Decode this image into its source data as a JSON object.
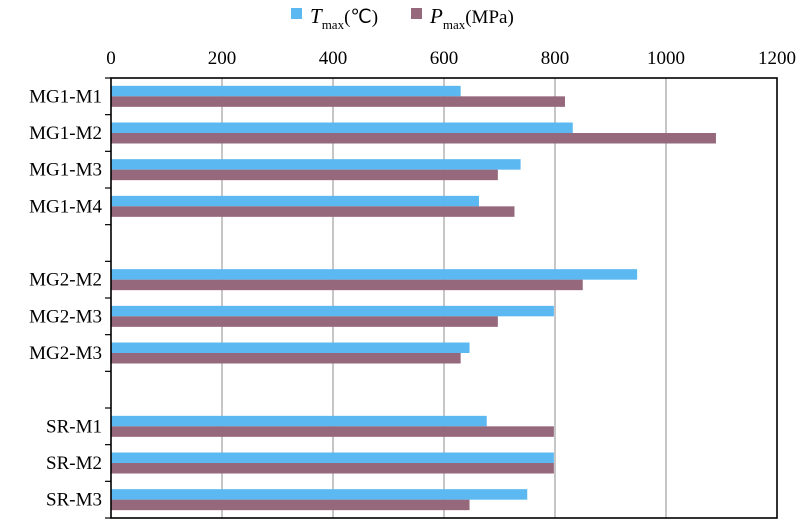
{
  "chart_data": {
    "type": "bar",
    "orientation": "horizontal",
    "categories": [
      "MG1-M1",
      "MG1-M2",
      "MG1-M3",
      "MG1-M4",
      "",
      "MG2-M2",
      "MG2-M3",
      "MG2-M3",
      "",
      "SR-M1",
      "SR-M2",
      "SR-M3"
    ],
    "series": [
      {
        "name_symbol": "T",
        "name_subscript": "max",
        "name_unit": "(℃)",
        "color": "#5bb8f0",
        "values": [
          630,
          832,
          738,
          663,
          null,
          948,
          798,
          646,
          null,
          677,
          798,
          750
        ]
      },
      {
        "name_symbol": "P",
        "name_subscript": "max",
        "name_unit": "(MPa)",
        "color": "#95687c",
        "values": [
          818,
          1090,
          697,
          727,
          null,
          850,
          697,
          630,
          null,
          798,
          798,
          646
        ]
      }
    ],
    "xticks": [
      "0",
      "200",
      "400",
      "600",
      "800",
      "1000",
      "1200"
    ],
    "xlim": [
      0,
      1200
    ],
    "x_axis_position": "top",
    "grid": "vertical",
    "legend_position": "top"
  }
}
